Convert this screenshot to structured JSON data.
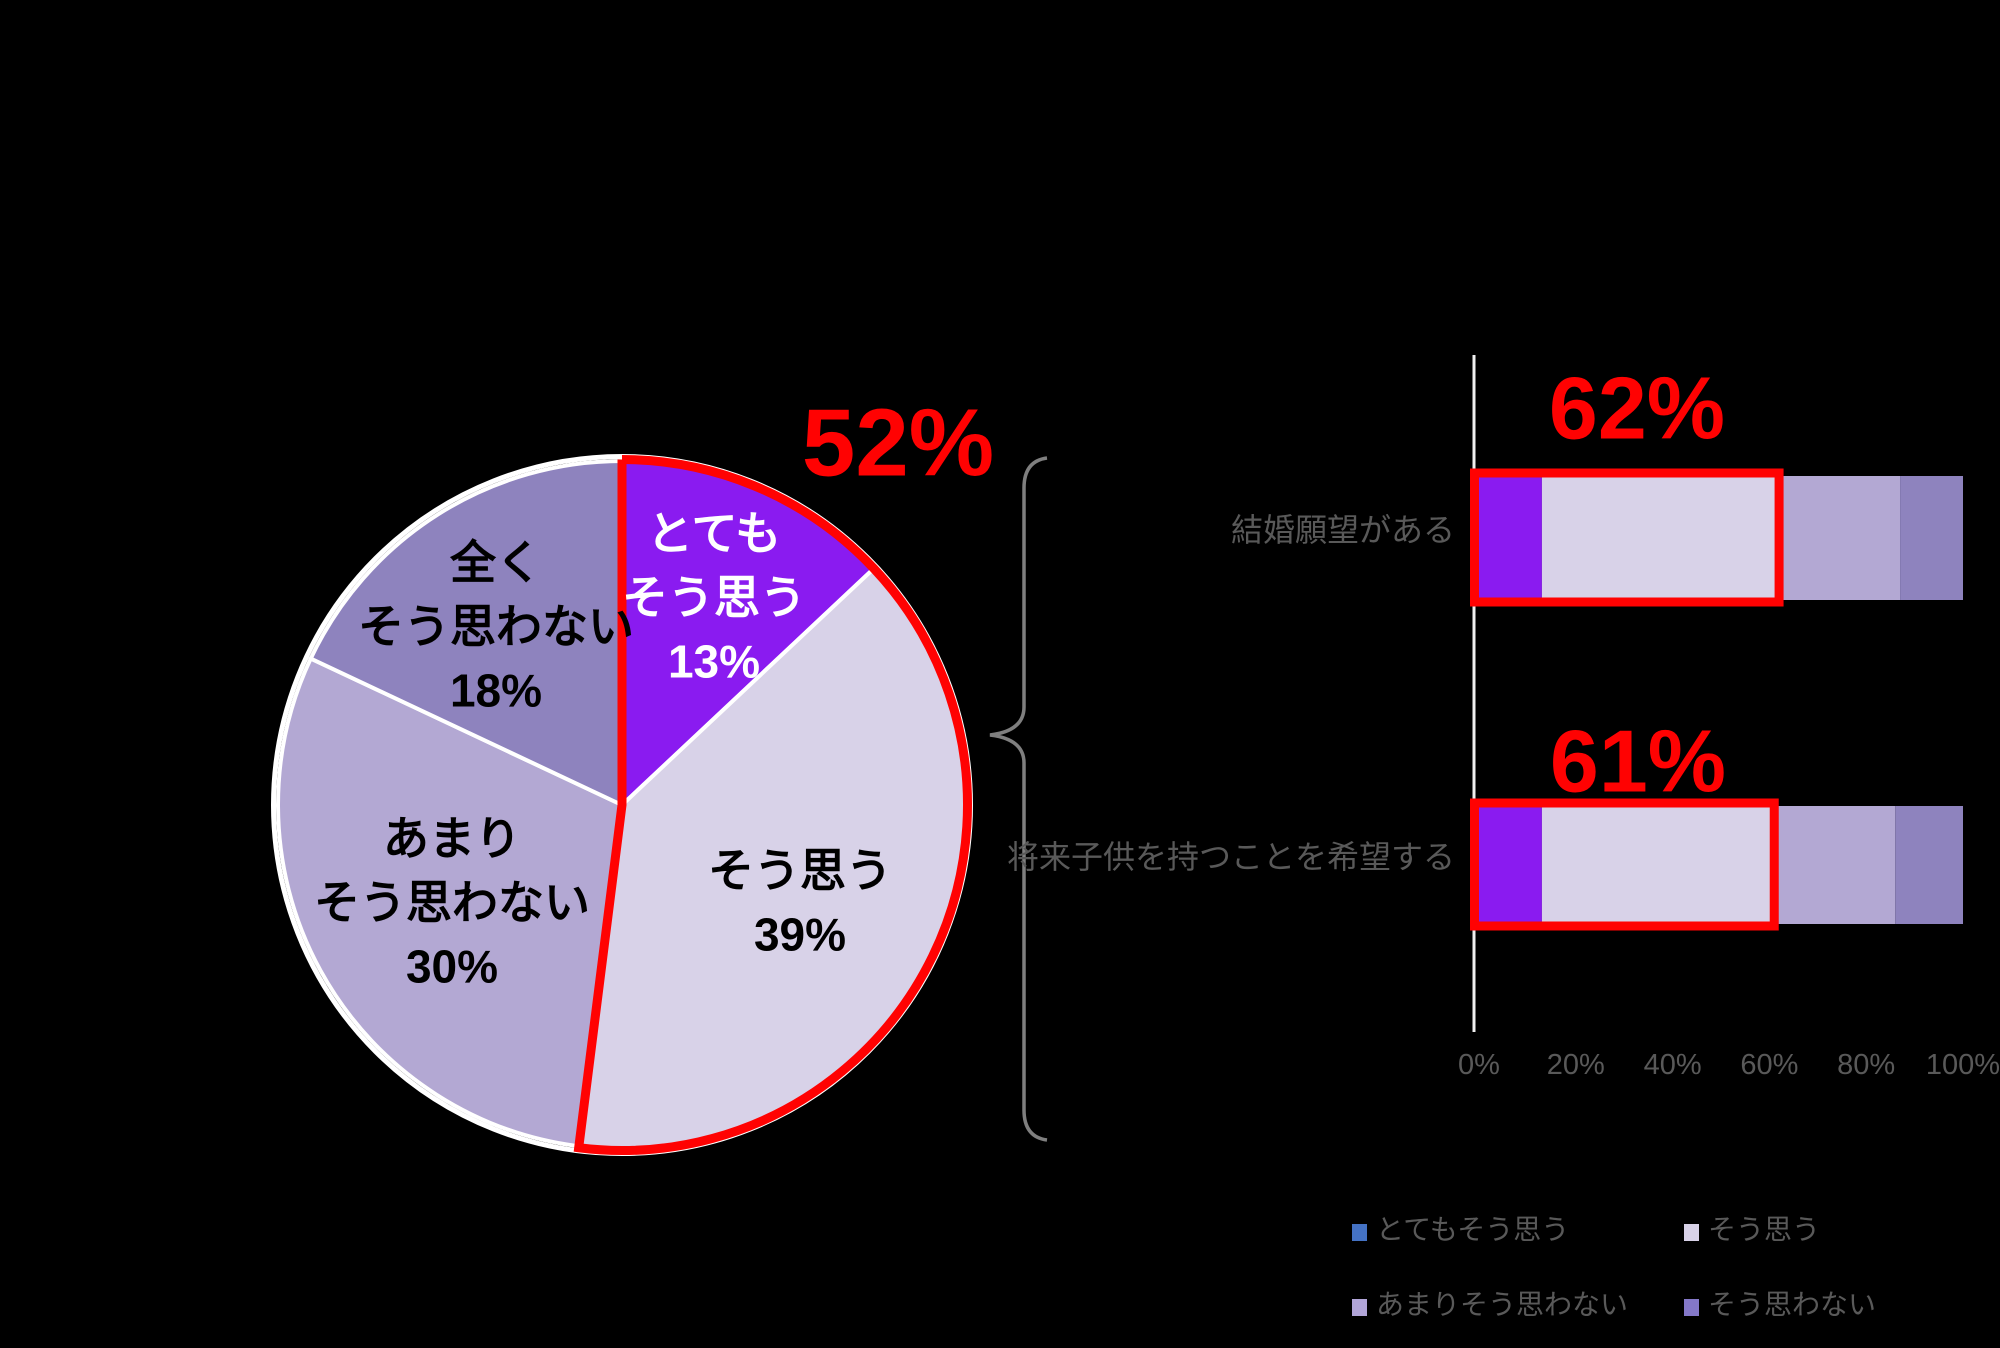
{
  "background_color": "#000000",
  "accent_red": "#FF0202",
  "gray_text_color": "#595959",
  "chart_data": [
    {
      "type": "pie",
      "title": "",
      "labels": [
        "とてもそう思う",
        "そう思う",
        "あまりそう思わない",
        "全くそう思わない"
      ],
      "values": [
        13,
        39,
        30,
        18
      ],
      "slice_label_lines": [
        [
          "とても",
          "そう思う",
          "13%"
        ],
        [
          "そう思う",
          "39%"
        ],
        [
          "あまり",
          "そう思わない",
          "30%"
        ],
        [
          "全く",
          "そう思わない",
          "18%"
        ]
      ],
      "colors": [
        "#8A1BF0",
        "#D8D2E8",
        "#B3A8D3",
        "#8E83BE"
      ],
      "label_text_colors": [
        "#FFFFFF",
        "#000000",
        "#000000",
        "#000000"
      ],
      "highlight": {
        "label": "52%",
        "value": 52,
        "covers": [
          "とてもそう思う",
          "そう思う"
        ],
        "color": "#FF0202"
      }
    },
    {
      "type": "bar",
      "orientation": "horizontal-stacked",
      "categories": [
        "結婚願望がある",
        "将来子供を持つことを希望する"
      ],
      "series": [
        {
          "name": "とてもそう思う",
          "color": "#8A1BF0",
          "values": [
            13,
            13
          ]
        },
        {
          "name": "そう思う",
          "color": "#D8D2E8",
          "values": [
            49,
            48
          ]
        },
        {
          "name": "あまりそう思わない",
          "color": "#B3A8D3",
          "values": [
            25,
            25
          ]
        },
        {
          "name": "そう思わない",
          "color": "#8E83BE",
          "values": [
            13,
            14
          ]
        }
      ],
      "annotations": [
        {
          "category": "結婚願望がある",
          "label": "62%",
          "value": 62
        },
        {
          "category": "将来子供を持つことを希望する",
          "label": "61%",
          "value": 61
        }
      ],
      "x_ticks": [
        "0%",
        "20%",
        "40%",
        "60%",
        "80%",
        "100%"
      ],
      "xlim": [
        0,
        100
      ],
      "grid": false,
      "legend_position": "bottom-right",
      "legend_items": [
        {
          "label": "とてもそう思う",
          "color": "#4472C4"
        },
        {
          "label": "そう思う",
          "color": "#D8D2E8"
        },
        {
          "label": "あまりそう思わない",
          "color": "#B1A5D8"
        },
        {
          "label": "そう思わない",
          "color": "#8478C8"
        }
      ]
    }
  ]
}
